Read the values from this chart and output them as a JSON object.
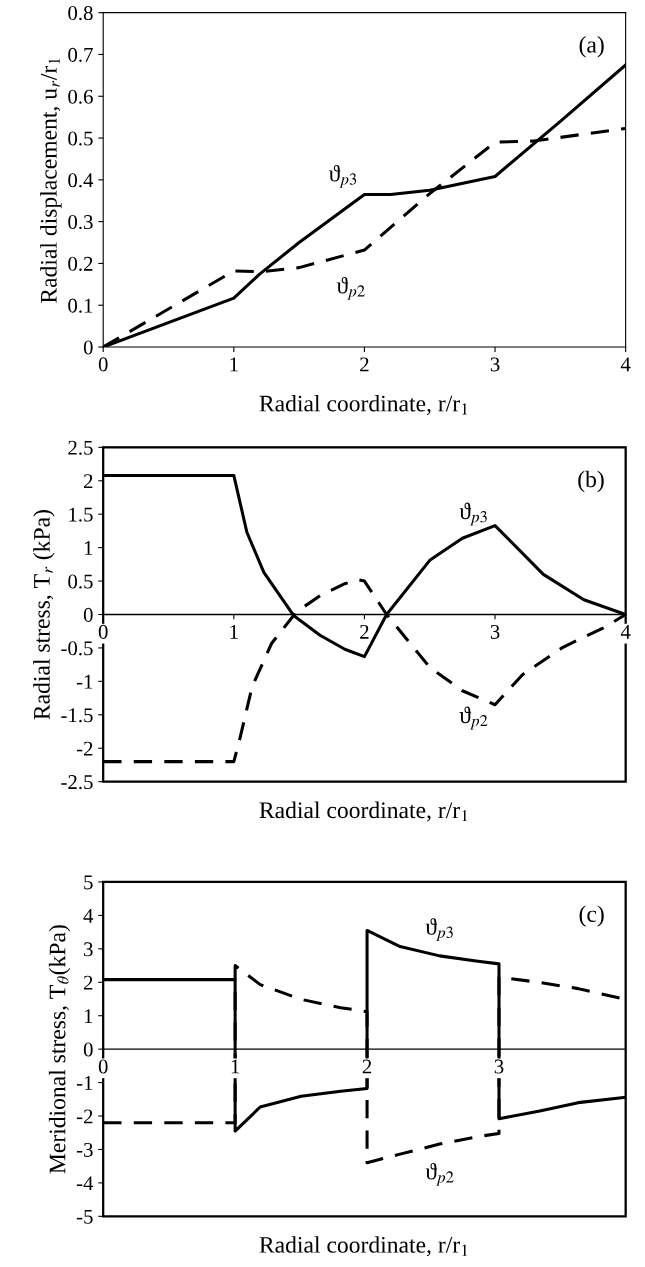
{
  "chart_data": [
    {
      "type": "line",
      "xlabel": "Radial coordinate, r/r$_{1}$",
      "ylabel": "Radial displacement, u$_{r}$/r$_{1}$",
      "xlim": [
        0,
        4
      ],
      "ylim": [
        0,
        0.8
      ],
      "xticks": [
        0,
        1,
        2,
        3,
        4
      ],
      "yticks": [
        0,
        0.1,
        0.2,
        0.3,
        0.4,
        0.5,
        0.6,
        0.7,
        0.8
      ],
      "grid": false,
      "legend": false,
      "marker": "none",
      "annotations": [
        "(a)",
        "ϑ$_{p3}$",
        "ϑ$_{p2}$"
      ],
      "series": [
        {
          "color": "#000000",
          "line_style": "solid",
          "x": [
            0,
            1,
            1.2,
            1.5,
            2,
            2.2,
            2.5,
            3,
            3.5,
            4
          ],
          "values": [
            0,
            0.117,
            0.175,
            0.25,
            0.365,
            0.365,
            0.375,
            0.408,
            0.54,
            0.675
          ]
        },
        {
          "color": "#000000",
          "line_style": "dashed",
          "x": [
            0,
            1,
            1.2,
            1.5,
            2,
            2.5,
            3,
            3.3,
            4
          ],
          "values": [
            0,
            0.182,
            0.18,
            0.19,
            0.232,
            0.367,
            0.49,
            0.493,
            0.523
          ]
        }
      ]
    },
    {
      "type": "line",
      "xlabel": "Radial coordinate, r/r$_{1}$",
      "ylabel": "Radial stress, T$_{r}$ (kPa)",
      "xlim": [
        0,
        4
      ],
      "ylim": [
        -2.5,
        2.5
      ],
      "xticks": [
        0,
        1,
        2,
        3,
        4
      ],
      "yticks": [
        -2.5,
        -2,
        -1.5,
        -1,
        -0.5,
        0,
        0.5,
        1,
        1.5,
        2,
        2.5
      ],
      "grid": false,
      "legend": false,
      "marker": "none",
      "annotations": [
        "(b)",
        "ϑ$_{p3}$",
        "ϑ$_{p2}$"
      ],
      "series": [
        {
          "color": "#000000",
          "line_style": "solid",
          "x": [
            0,
            1,
            1.1,
            1.23,
            1.46,
            1.66,
            1.85,
            2,
            2.17,
            2.5,
            2.75,
            3,
            3.37,
            3.68,
            4
          ],
          "values": [
            2.08,
            2.08,
            1.23,
            0.63,
            -0.02,
            -0.31,
            -0.52,
            -0.63,
            0,
            0.81,
            1.14,
            1.33,
            0.6,
            0.22,
            0
          ]
        },
        {
          "color": "#000000",
          "line_style": "dashed",
          "x": [
            0,
            1,
            1.04,
            1.14,
            1.29,
            1.48,
            1.66,
            1.85,
            1.95,
            2,
            2.17,
            2.5,
            2.75,
            3,
            3.21,
            3.52,
            3.83,
            4
          ],
          "values": [
            -2.2,
            -2.2,
            -1.91,
            -1.08,
            -0.43,
            0.04,
            0.28,
            0.46,
            0.52,
            0.5,
            0,
            -0.79,
            -1.14,
            -1.35,
            -0.9,
            -0.49,
            -0.2,
            0
          ]
        }
      ]
    },
    {
      "type": "line",
      "xlabel": "Radial coordinate, r/r$_{1}$",
      "ylabel": "Meridional stress, T$_{θ}$(kPa)",
      "xlim": [
        0,
        3.96
      ],
      "ylim": [
        -5,
        5
      ],
      "xticks": [
        0,
        1,
        2,
        3
      ],
      "yticks": [
        -5,
        -4,
        -3,
        -2,
        -1,
        0,
        1,
        2,
        3,
        4,
        5
      ],
      "grid": false,
      "legend": false,
      "marker": "none",
      "annotations": [
        "(c)",
        "ϑ$_{p3}$",
        "ϑ$_{p2}$"
      ],
      "series": [
        {
          "color": "#000000",
          "line_style": "solid",
          "x": [
            0,
            1,
            1,
            1.19,
            1.5,
            1.8,
            2,
            2,
            2.25,
            2.55,
            2.84,
            3,
            3,
            3.3,
            3.6,
            3.96
          ],
          "values": [
            2.08,
            2.08,
            -2.45,
            -1.73,
            -1.41,
            -1.26,
            -1.18,
            3.55,
            3.07,
            2.79,
            2.63,
            2.55,
            -2.08,
            -1.86,
            -1.6,
            -1.44
          ]
        },
        {
          "color": "#000000",
          "line_style": "dashed",
          "x": [
            0,
            1,
            1,
            1.19,
            1.5,
            1.8,
            2,
            2,
            2.25,
            2.55,
            2.85,
            3,
            3,
            3.3,
            3.6,
            3.96
          ],
          "values": [
            -2.2,
            -2.2,
            2.5,
            1.93,
            1.49,
            1.24,
            1.12,
            -3.4,
            -3.14,
            -2.84,
            -2.61,
            -2.52,
            2.15,
            2.0,
            1.81,
            1.49
          ]
        }
      ]
    }
  ]
}
